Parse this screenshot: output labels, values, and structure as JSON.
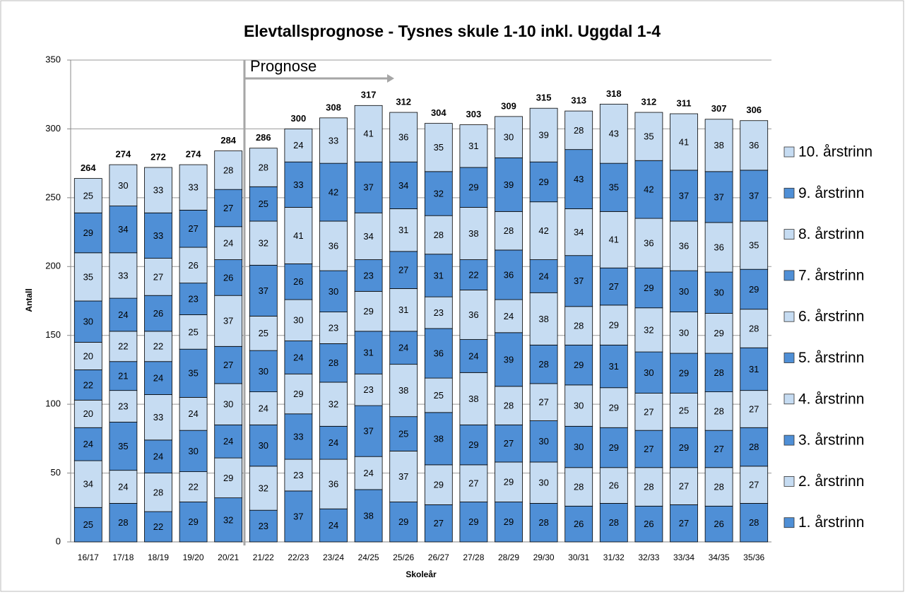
{
  "chart_data": {
    "type": "stacked_bar",
    "title": "Elevtallsprognose - Tysnes skule 1-10 inkl. Uggdal 1-4",
    "x_label": "Skoleår",
    "y_label": "Antall",
    "annotation": "Prognose",
    "categories": [
      "16/17",
      "17/18",
      "18/19",
      "19/20",
      "20/21",
      "21/22",
      "22/23",
      "23/24",
      "24/25",
      "25/26",
      "26/27",
      "27/28",
      "28/29",
      "29/30",
      "30/31",
      "31/32",
      "32/33",
      "33/34",
      "34/35",
      "35/36"
    ],
    "ylim": [
      0,
      350
    ],
    "yticks": [
      0,
      50,
      100,
      150,
      200,
      250,
      300,
      350
    ],
    "grid": true,
    "legend": "right",
    "totals": [
      264,
      274,
      272,
      274,
      284,
      286,
      300,
      308,
      317,
      312,
      304,
      303,
      309,
      315,
      313,
      318,
      312,
      311,
      307,
      306
    ],
    "series": [
      {
        "name": "1. årstrinn",
        "color": "#4f8fd6",
        "values": [
          25,
          28,
          22,
          29,
          32,
          23,
          37,
          24,
          38,
          29,
          27,
          29,
          29,
          28,
          26,
          28,
          26,
          27,
          26,
          28
        ]
      },
      {
        "name": "2. årstrinn",
        "color": "#c6dcf2",
        "values": [
          34,
          24,
          28,
          22,
          29,
          32,
          23,
          36,
          24,
          37,
          29,
          27,
          29,
          30,
          28,
          26,
          28,
          27,
          28,
          27
        ]
      },
      {
        "name": "3. årstrinn",
        "color": "#4f8fd6",
        "values": [
          24,
          35,
          24,
          30,
          24,
          30,
          33,
          24,
          37,
          25,
          38,
          29,
          27,
          30,
          30,
          29,
          27,
          29,
          27,
          28
        ]
      },
      {
        "name": "4. årstrinn",
        "color": "#c6dcf2",
        "values": [
          20,
          23,
          33,
          24,
          30,
          24,
          29,
          32,
          23,
          38,
          25,
          38,
          28,
          27,
          30,
          29,
          27,
          25,
          28,
          27
        ]
      },
      {
        "name": "5. årstrinn",
        "color": "#4f8fd6",
        "values": [
          22,
          21,
          24,
          35,
          27,
          30,
          24,
          28,
          31,
          24,
          36,
          24,
          39,
          28,
          29,
          31,
          30,
          29,
          28,
          31
        ]
      },
      {
        "name": "6. årstrinn",
        "color": "#c6dcf2",
        "values": [
          20,
          22,
          22,
          25,
          37,
          25,
          30,
          23,
          29,
          31,
          23,
          36,
          24,
          38,
          28,
          29,
          32,
          30,
          29,
          28
        ]
      },
      {
        "name": "7. årstrinn",
        "color": "#4f8fd6",
        "values": [
          30,
          24,
          26,
          23,
          26,
          37,
          26,
          30,
          23,
          27,
          31,
          22,
          36,
          24,
          37,
          27,
          29,
          30,
          30,
          29
        ]
      },
      {
        "name": "8. årstrinn",
        "color": "#c6dcf2",
        "values": [
          35,
          33,
          27,
          26,
          24,
          32,
          41,
          36,
          34,
          31,
          28,
          38,
          28,
          42,
          34,
          41,
          36,
          36,
          36,
          35
        ]
      },
      {
        "name": "9. årstrinn",
        "color": "#4f8fd6",
        "values": [
          29,
          34,
          33,
          27,
          27,
          25,
          33,
          42,
          37,
          34,
          32,
          29,
          39,
          29,
          43,
          35,
          42,
          37,
          37,
          37
        ]
      },
      {
        "name": "10. årstrinn",
        "color": "#c6dcf2",
        "values": [
          25,
          30,
          33,
          33,
          28,
          28,
          24,
          33,
          41,
          36,
          35,
          31,
          30,
          39,
          28,
          43,
          35,
          41,
          38,
          36
        ]
      }
    ]
  }
}
